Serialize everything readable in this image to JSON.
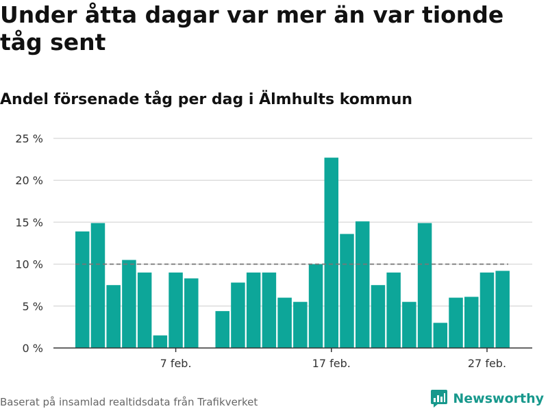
{
  "header": {
    "title": "Under åtta dagar var mer än var tionde tåg sent",
    "subtitle": "Andel försenade tåg per dag i Älmhults kommun"
  },
  "footer": {
    "source": "Baserat på insamlad realtidsdata från Trafikverket",
    "brand": "Newsworthy"
  },
  "colors": {
    "bar": "#0da699",
    "reference_line": "#777777",
    "grid": "#dddddd",
    "brand": "#17988c"
  },
  "chart_data": {
    "type": "bar",
    "title": "Under åtta dagar var mer än var tionde tåg sent",
    "subtitle": "Andel försenade tåg per dag i Älmhults kommun",
    "xlabel": "",
    "ylabel": "",
    "ylim": [
      0,
      25
    ],
    "yticks": [
      0,
      5,
      10,
      15,
      20,
      25
    ],
    "ytick_labels": [
      "0 %",
      "5 %",
      "10 %",
      "15 %",
      "20 %",
      "25 %"
    ],
    "xtick_labels": [
      "7 feb.",
      "17 feb.",
      "27 feb."
    ],
    "xtick_dates": [
      "7 feb.",
      "17 feb.",
      "27 feb."
    ],
    "grid": true,
    "reference_line": 10,
    "categories": [
      "1 feb.",
      "2 feb.",
      "3 feb.",
      "4 feb.",
      "5 feb.",
      "6 feb.",
      "7 feb.",
      "8 feb.",
      "9 feb.",
      "10 feb.",
      "11 feb.",
      "12 feb.",
      "13 feb.",
      "14 feb.",
      "15 feb.",
      "16 feb.",
      "17 feb.",
      "18 feb.",
      "19 feb.",
      "20 feb.",
      "21 feb.",
      "22 feb.",
      "23 feb.",
      "24 feb.",
      "25 feb.",
      "26 feb.",
      "27 feb.",
      "28 feb."
    ],
    "values": [
      13.9,
      14.9,
      7.5,
      10.5,
      9.0,
      1.5,
      9.0,
      8.3,
      null,
      4.4,
      7.8,
      9.0,
      9.0,
      6.0,
      5.5,
      10.0,
      22.7,
      13.6,
      15.1,
      7.5,
      9.0,
      5.5,
      14.9,
      3.0,
      6.0,
      6.1,
      9.0,
      9.2
    ]
  }
}
